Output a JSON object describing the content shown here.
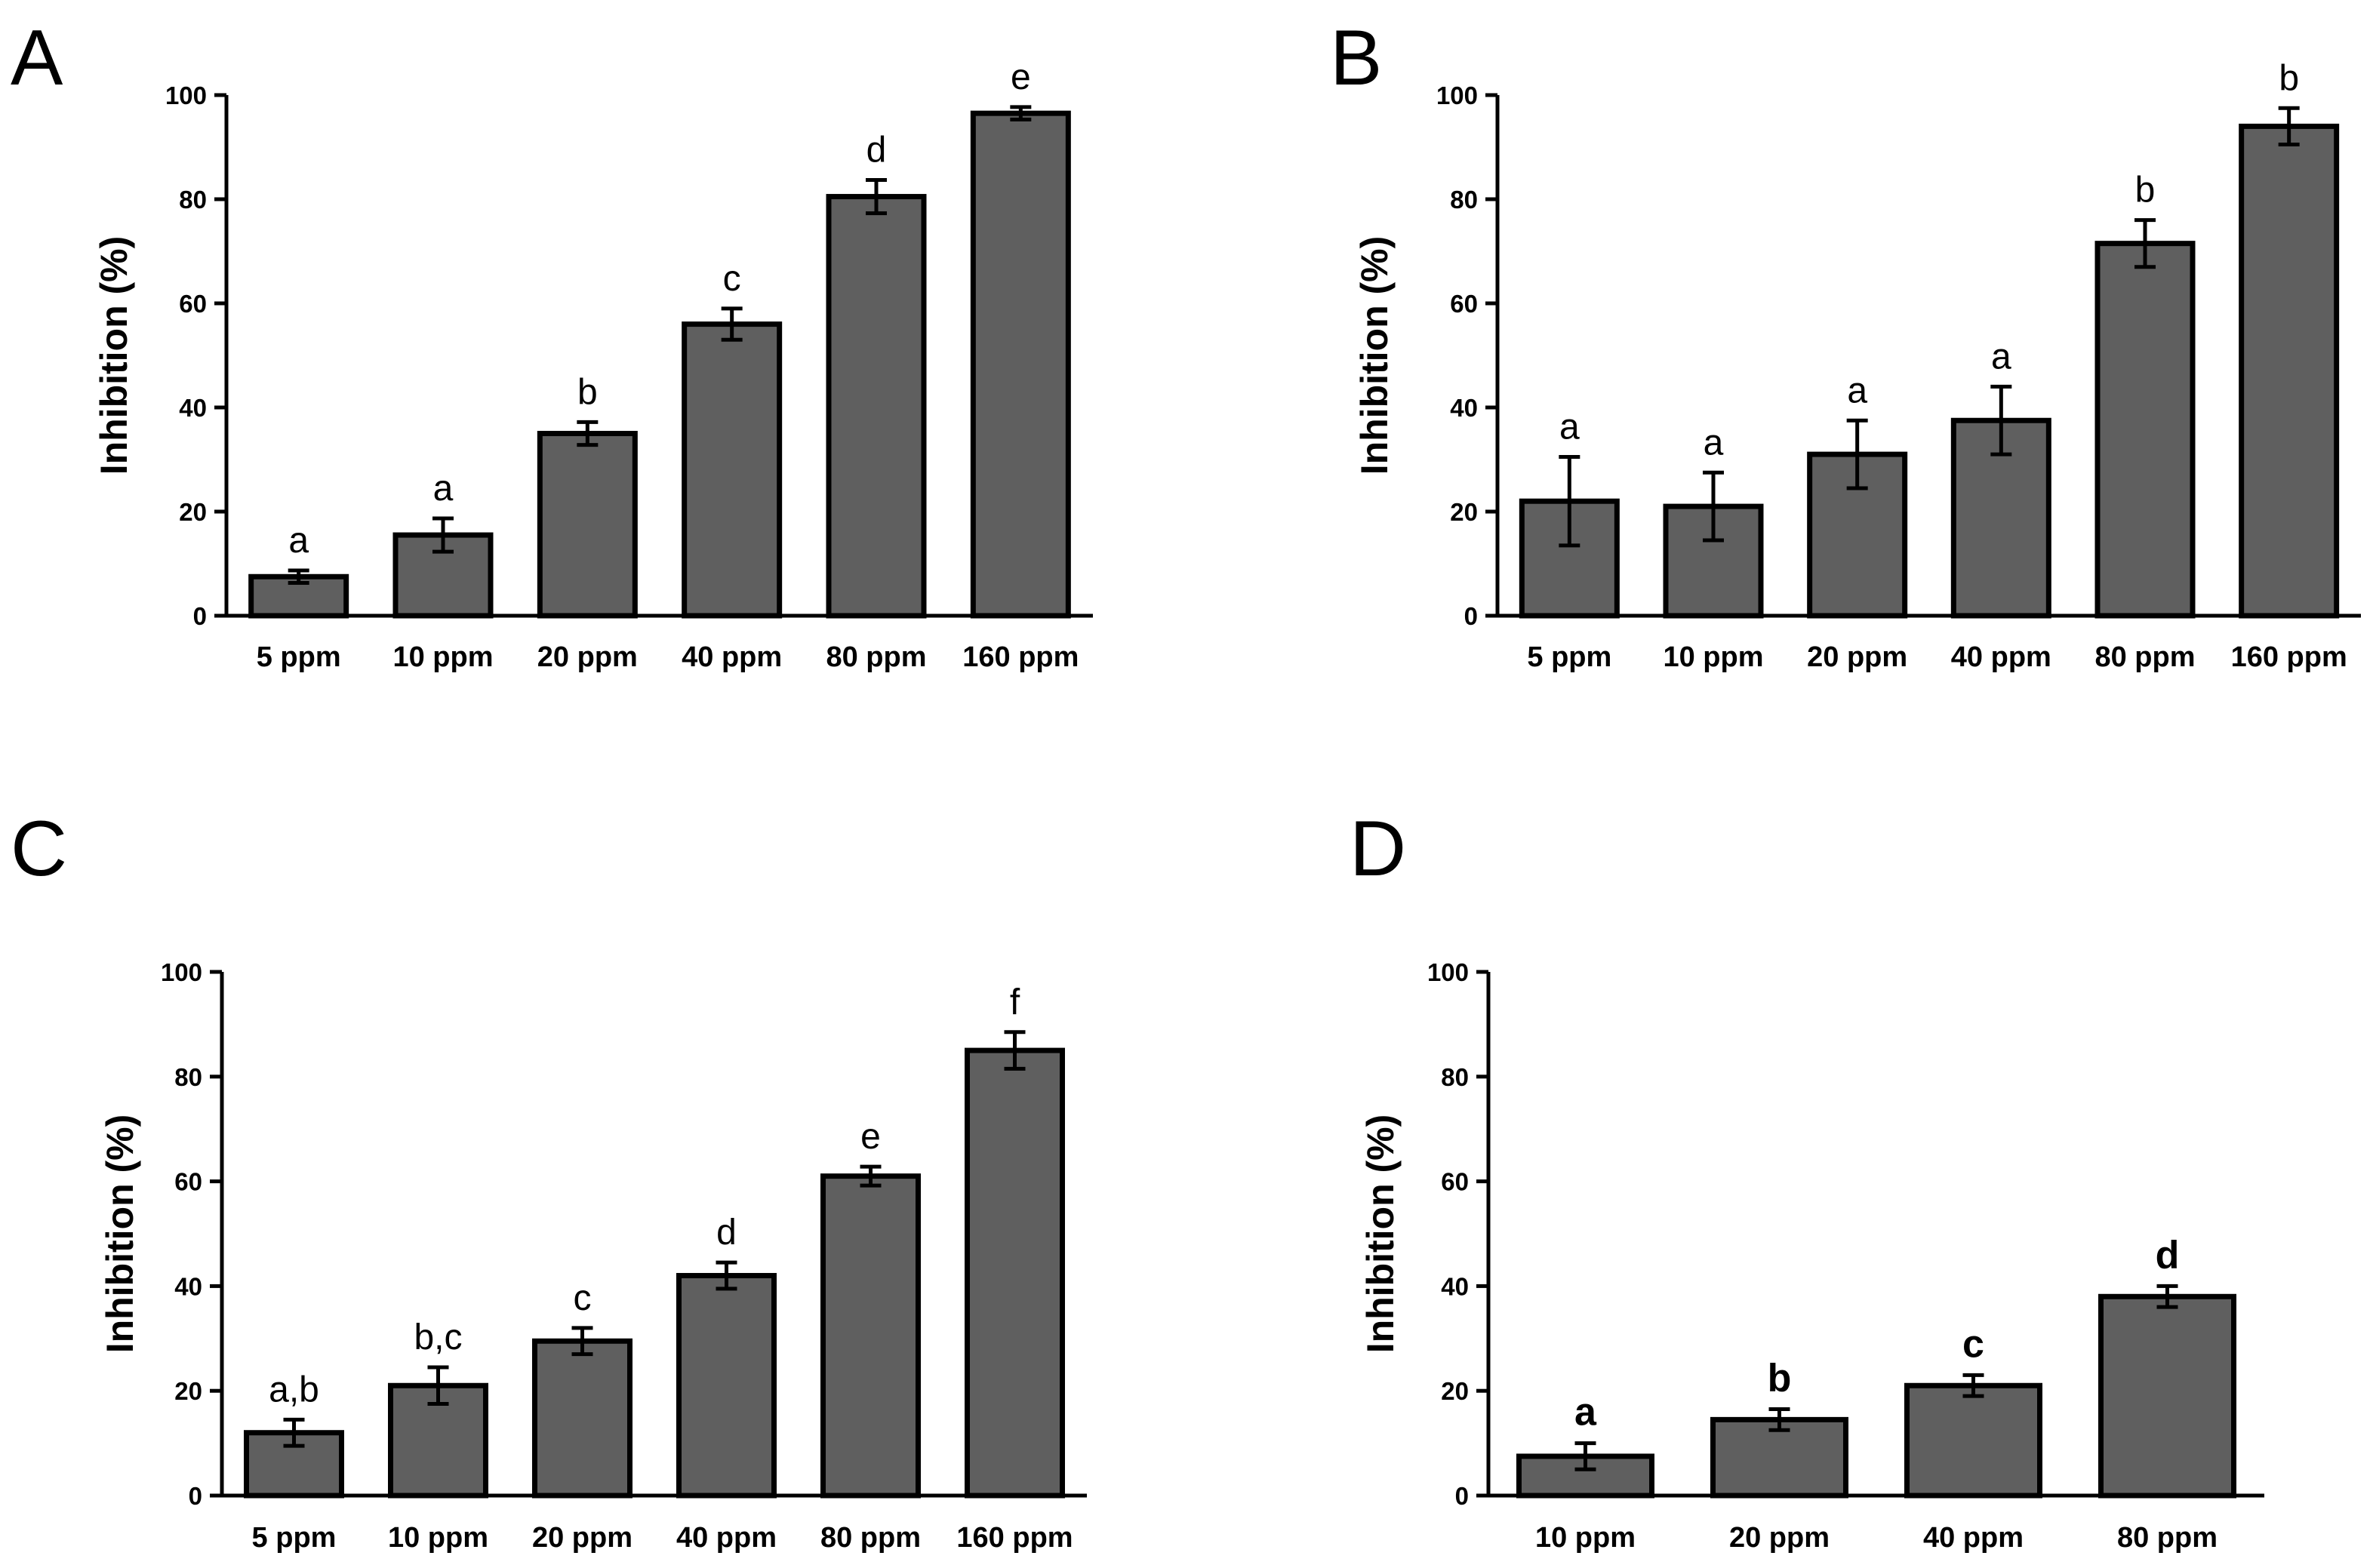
{
  "chart_data": [
    {
      "panel": "A",
      "type": "bar",
      "ylabel": "Inhibition (%)",
      "ylim": [
        0,
        100
      ],
      "yticks": [
        "0",
        "20",
        "40",
        "60",
        "80",
        "100"
      ],
      "categories": [
        "5 ppm",
        "10 ppm",
        "20 ppm",
        "40 ppm",
        "80 ppm",
        "160 ppm"
      ],
      "values": [
        7.5,
        15.5,
        35,
        56,
        80.5,
        96.5
      ],
      "errors": [
        1.2,
        3.2,
        2.2,
        3,
        3.2,
        1.2
      ],
      "significance": [
        "a",
        "a",
        "b",
        "c",
        "d",
        "e"
      ],
      "sig_bold": false
    },
    {
      "panel": "B",
      "type": "bar",
      "ylabel": "Inhibition (%)",
      "ylim": [
        0,
        100
      ],
      "yticks": [
        "0",
        "20",
        "40",
        "60",
        "80",
        "100"
      ],
      "categories": [
        "5 ppm",
        "10 ppm",
        "20 ppm",
        "40 ppm",
        "80 ppm",
        "160 ppm"
      ],
      "values": [
        22,
        21,
        31,
        37.5,
        71.5,
        94
      ],
      "errors": [
        8.5,
        6.5,
        6.5,
        6.5,
        4.5,
        3.5
      ],
      "significance": [
        "a",
        "a",
        "a",
        "a",
        "b",
        "b"
      ],
      "sig_bold": false
    },
    {
      "panel": "C",
      "type": "bar",
      "ylabel": "Inhibition (%)",
      "ylim": [
        0,
        100
      ],
      "yticks": [
        "0",
        "20",
        "40",
        "60",
        "80",
        "100"
      ],
      "categories": [
        "5 ppm",
        "10 ppm",
        "20 ppm",
        "40 ppm",
        "80 ppm",
        "160 ppm"
      ],
      "values": [
        12,
        21,
        29.5,
        42,
        61,
        85
      ],
      "errors": [
        2.5,
        3.5,
        2.5,
        2.5,
        1.8,
        3.5
      ],
      "significance": [
        "a,b",
        "b,c",
        "c",
        "d",
        "e",
        "f"
      ],
      "sig_bold": false
    },
    {
      "panel": "D",
      "type": "bar",
      "ylabel": "Inhibition (%)",
      "ylim": [
        0,
        100
      ],
      "yticks": [
        "0",
        "20",
        "40",
        "60",
        "80",
        "100"
      ],
      "categories": [
        "10 ppm",
        "20 ppm",
        "40 ppm",
        "80 ppm"
      ],
      "values": [
        7.5,
        14.5,
        21,
        38
      ],
      "errors": [
        2.5,
        2,
        2,
        2
      ],
      "significance": [
        "a",
        "b",
        "c",
        "d"
      ],
      "sig_bold": true
    }
  ]
}
